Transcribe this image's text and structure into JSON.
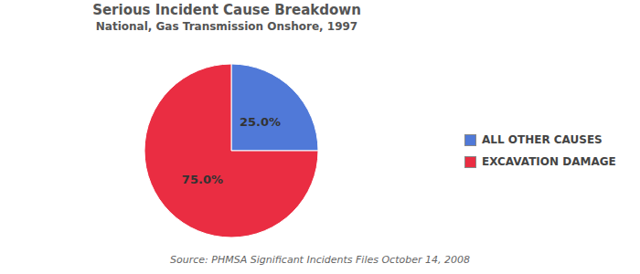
{
  "chart_data": {
    "type": "pie",
    "title": "Serious Incident Cause Breakdown",
    "subtitle": "National, Gas Transmission Onshore, 1997",
    "source": "Source: PHMSA Significant Incidents Files October 14, 2008",
    "categories": [
      "ALL OTHER CAUSES",
      "EXCAVATION DAMAGE"
    ],
    "values": [
      25,
      75
    ],
    "value_labels": [
      "25.0%",
      "75.0%"
    ],
    "colors": [
      "#5079d8",
      "#ea2d42"
    ],
    "data_labels": true,
    "legend": "right"
  }
}
